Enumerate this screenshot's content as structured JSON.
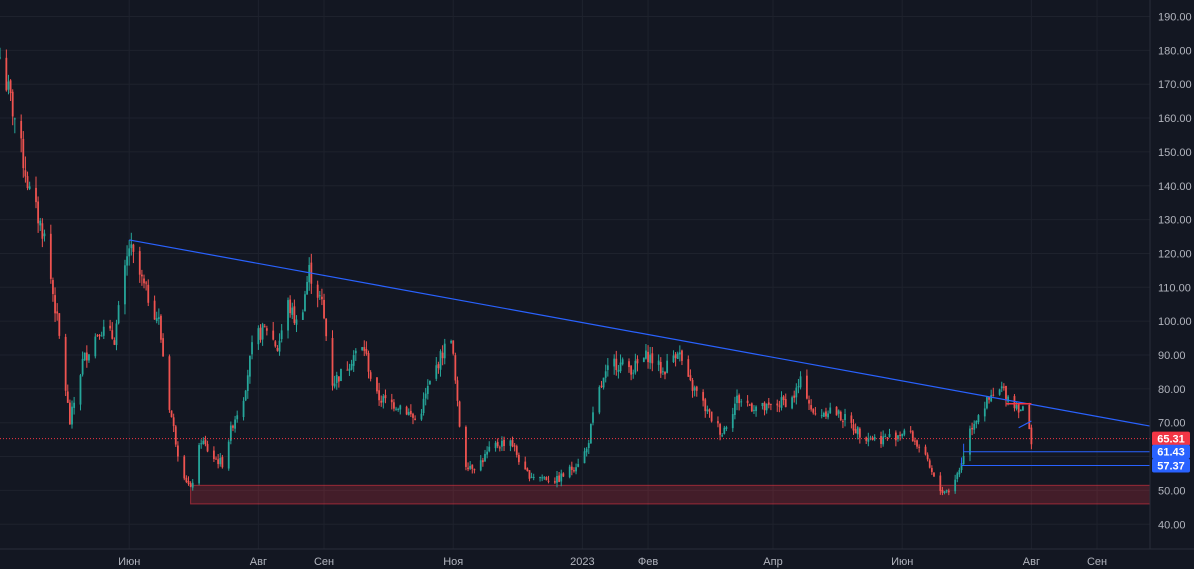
{
  "chart_data": {
    "type": "candlestick",
    "theme": {
      "background": "#131722",
      "grid": "#1e222d",
      "text": "#b2b5be",
      "up": "#26a69a",
      "down": "#ef5350"
    },
    "x_domain": [
      "2022-04-01",
      "2023-09-26"
    ],
    "ylim": [
      35,
      195
    ],
    "y_ticks": [
      {
        "value": 40,
        "label": "40.00"
      },
      {
        "value": 50,
        "label": "50.00"
      },
      {
        "value": 60,
        "label": "60.00"
      },
      {
        "value": 70,
        "label": "70.00"
      },
      {
        "value": 80,
        "label": "80.00"
      },
      {
        "value": 90,
        "label": "90.00"
      },
      {
        "value": 100,
        "label": "100.00"
      },
      {
        "value": 110,
        "label": "110.00"
      },
      {
        "value": 120,
        "label": "120.00"
      },
      {
        "value": 130,
        "label": "130.00"
      },
      {
        "value": 140,
        "label": "140.00"
      },
      {
        "value": 150,
        "label": "150.00"
      },
      {
        "value": 160,
        "label": "160.00"
      },
      {
        "value": 170,
        "label": "170.00"
      },
      {
        "value": 180,
        "label": "180.00"
      },
      {
        "value": 190,
        "label": "190.00"
      }
    ],
    "x_ticks": [
      {
        "date": "2022-06-01",
        "label": "Июн"
      },
      {
        "date": "2022-08-01",
        "label": "Авг"
      },
      {
        "date": "2022-09-01",
        "label": "Сен"
      },
      {
        "date": "2022-11-01",
        "label": "Ноя"
      },
      {
        "date": "2023-01-01",
        "label": "2023"
      },
      {
        "date": "2023-02-01",
        "label": "Фев"
      },
      {
        "date": "2023-04-01",
        "label": "Апр"
      },
      {
        "date": "2023-06-01",
        "label": "Июн"
      },
      {
        "date": "2023-08-01",
        "label": "Авг"
      },
      {
        "date": "2023-09-01",
        "label": "Сен"
      }
    ],
    "price_path": [
      [
        "2022-04-01",
        178
      ],
      [
        "2022-04-08",
        160
      ],
      [
        "2022-04-15",
        138
      ],
      [
        "2022-04-22",
        125
      ],
      [
        "2022-04-28",
        100
      ],
      [
        "2022-05-04",
        70
      ],
      [
        "2022-05-10",
        88
      ],
      [
        "2022-05-18",
        98
      ],
      [
        "2022-05-25",
        95
      ],
      [
        "2022-06-01",
        122
      ],
      [
        "2022-06-08",
        110
      ],
      [
        "2022-06-15",
        100
      ],
      [
        "2022-06-20",
        75
      ],
      [
        "2022-06-25",
        58
      ],
      [
        "2022-06-30",
        50
      ],
      [
        "2022-07-05",
        65
      ],
      [
        "2022-07-10",
        60
      ],
      [
        "2022-07-15",
        58
      ],
      [
        "2022-07-20",
        70
      ],
      [
        "2022-07-25",
        78
      ],
      [
        "2022-07-30",
        95
      ],
      [
        "2022-08-05",
        98
      ],
      [
        "2022-08-10",
        92
      ],
      [
        "2022-08-15",
        105
      ],
      [
        "2022-08-20",
        98
      ],
      [
        "2022-08-25",
        115
      ],
      [
        "2022-08-31",
        105
      ],
      [
        "2022-09-05",
        82
      ],
      [
        "2022-09-10",
        85
      ],
      [
        "2022-09-15",
        90
      ],
      [
        "2022-09-20",
        92
      ],
      [
        "2022-09-25",
        78
      ],
      [
        "2022-10-01",
        76
      ],
      [
        "2022-10-08",
        75
      ],
      [
        "2022-10-15",
        70
      ],
      [
        "2022-10-20",
        80
      ],
      [
        "2022-10-25",
        88
      ],
      [
        "2022-10-31",
        96
      ],
      [
        "2022-11-03",
        75
      ],
      [
        "2022-11-06",
        58
      ],
      [
        "2022-11-12",
        57
      ],
      [
        "2022-11-20",
        63
      ],
      [
        "2022-11-28",
        65
      ],
      [
        "2022-12-05",
        55
      ],
      [
        "2022-12-12",
        54
      ],
      [
        "2022-12-20",
        53
      ],
      [
        "2022-12-28",
        57
      ],
      [
        "2023-01-03",
        62
      ],
      [
        "2023-01-08",
        78
      ],
      [
        "2023-01-15",
        88
      ],
      [
        "2023-01-25",
        86
      ],
      [
        "2023-02-01",
        90
      ],
      [
        "2023-02-08",
        85
      ],
      [
        "2023-02-15",
        92
      ],
      [
        "2023-02-20",
        82
      ],
      [
        "2023-02-25",
        78
      ],
      [
        "2023-03-01",
        73
      ],
      [
        "2023-03-08",
        67
      ],
      [
        "2023-03-15",
        77
      ],
      [
        "2023-03-22",
        75
      ],
      [
        "2023-03-29",
        74
      ],
      [
        "2023-04-05",
        76
      ],
      [
        "2023-04-10",
        77
      ],
      [
        "2023-04-15",
        83
      ],
      [
        "2023-04-20",
        72
      ],
      [
        "2023-04-28",
        74
      ],
      [
        "2023-05-05",
        71
      ],
      [
        "2023-05-12",
        67
      ],
      [
        "2023-05-20",
        65
      ],
      [
        "2023-05-28",
        66
      ],
      [
        "2023-06-03",
        68
      ],
      [
        "2023-06-10",
        62
      ],
      [
        "2023-06-15",
        55
      ],
      [
        "2023-06-18",
        50
      ],
      [
        "2023-06-23",
        50
      ],
      [
        "2023-06-28",
        56
      ],
      [
        "2023-07-03",
        68
      ],
      [
        "2023-07-08",
        74
      ],
      [
        "2023-07-13",
        77
      ],
      [
        "2023-07-18",
        80
      ],
      [
        "2023-07-23",
        76
      ],
      [
        "2023-07-28",
        74
      ],
      [
        "2023-08-01",
        65
      ]
    ],
    "trendline": {
      "from": [
        "2022-06-01",
        124
      ],
      "to": [
        "2023-09-26",
        69
      ]
    },
    "support_zone": {
      "from_date": "2022-06-30",
      "y_low": 46,
      "y_high": 51.5
    },
    "last_price": {
      "value": 65.31,
      "label": "65.31",
      "color": "#f23645"
    },
    "price_tags": [
      {
        "value": 61.43,
        "label": "61.43",
        "color": "#2962ff"
      },
      {
        "value": 57.37,
        "label": "57.37",
        "color": "#2962ff"
      }
    ],
    "horizontal_levels": [
      {
        "from_date": "2023-06-30",
        "value": 61.43,
        "color": "#2962ff"
      },
      {
        "from_date": "2023-06-29",
        "value": 57.37,
        "color": "#2962ff"
      }
    ],
    "resistance_segment": {
      "from_date": "2023-07-20",
      "to_date": "2023-08-01",
      "value": 75.6,
      "color": "#f23645"
    },
    "mini_trend": {
      "from": [
        "2023-07-26",
        68.5
      ],
      "to": [
        "2023-08-01",
        70.5
      ],
      "color": "#2962ff"
    }
  }
}
